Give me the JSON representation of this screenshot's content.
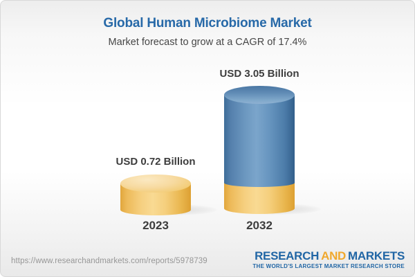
{
  "chart_data": {
    "type": "bar",
    "title": "Global Human Microbiome Market",
    "subtitle": "Market forecast to grow at a CAGR of 17.4%",
    "cagr_percent": 17.4,
    "unit": "USD Billion",
    "categories": [
      "2023",
      "2032"
    ],
    "values": [
      0.72,
      3.05
    ],
    "value_labels": [
      "USD 0.72 Billion",
      "USD 3.05 Billion"
    ],
    "bar_colors": [
      "#f3cd7c",
      "#5585b2"
    ],
    "bar_base_color": "#f3cd7c",
    "legend": "none",
    "grid": false
  },
  "colors": {
    "title_blue": "#2769a8",
    "logo_blue": "#2166a5",
    "logo_orange": "#f0a82d",
    "label_gray": "#3d3d3d",
    "url_gray": "#969696"
  },
  "footer": {
    "url": "https://www.researchandmarkets.com/reports/5978739",
    "logo": {
      "research": "RESEARCH",
      "and": "AND",
      "markets": "MARKETS",
      "tagline": "THE WORLD'S LARGEST MARKET RESEARCH STORE"
    }
  }
}
